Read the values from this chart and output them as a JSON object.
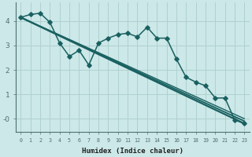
{
  "xlabel": "Humidex (Indice chaleur)",
  "bg_color": "#cce8e8",
  "grid_color": "#b0d0d0",
  "line_color": "#1a6060",
  "xlim": [
    -0.5,
    23.5
  ],
  "ylim": [
    -0.55,
    4.75
  ],
  "xticks": [
    0,
    1,
    2,
    3,
    4,
    5,
    6,
    7,
    8,
    9,
    10,
    11,
    12,
    13,
    14,
    15,
    16,
    17,
    18,
    19,
    20,
    21,
    22,
    23
  ],
  "yticks": [
    0,
    1,
    2,
    3,
    4
  ],
  "ytick_labels": [
    "-0",
    "1",
    "2",
    "3",
    "4"
  ],
  "jagged": {
    "x": [
      0,
      1,
      2,
      3,
      4,
      5,
      6,
      7,
      8,
      9,
      10,
      11,
      12,
      13,
      14,
      15,
      16,
      17,
      18,
      19,
      20,
      21,
      22,
      23
    ],
    "y": [
      4.15,
      4.27,
      4.32,
      3.95,
      3.1,
      2.55,
      2.8,
      2.2,
      3.1,
      3.3,
      3.45,
      3.5,
      3.35,
      3.75,
      3.3,
      3.3,
      2.45,
      1.7,
      1.5,
      1.35,
      0.85,
      0.85,
      -0.05,
      -0.2
    ]
  },
  "straight_lines": [
    {
      "x": [
        0,
        23
      ],
      "y": [
        4.15,
        -0.2
      ],
      "lw": 1.6
    },
    {
      "x": [
        0,
        23
      ],
      "y": [
        4.15,
        -0.1
      ],
      "lw": 1.3
    },
    {
      "x": [
        0,
        23
      ],
      "y": [
        4.15,
        0.0
      ],
      "lw": 1.0
    }
  ]
}
